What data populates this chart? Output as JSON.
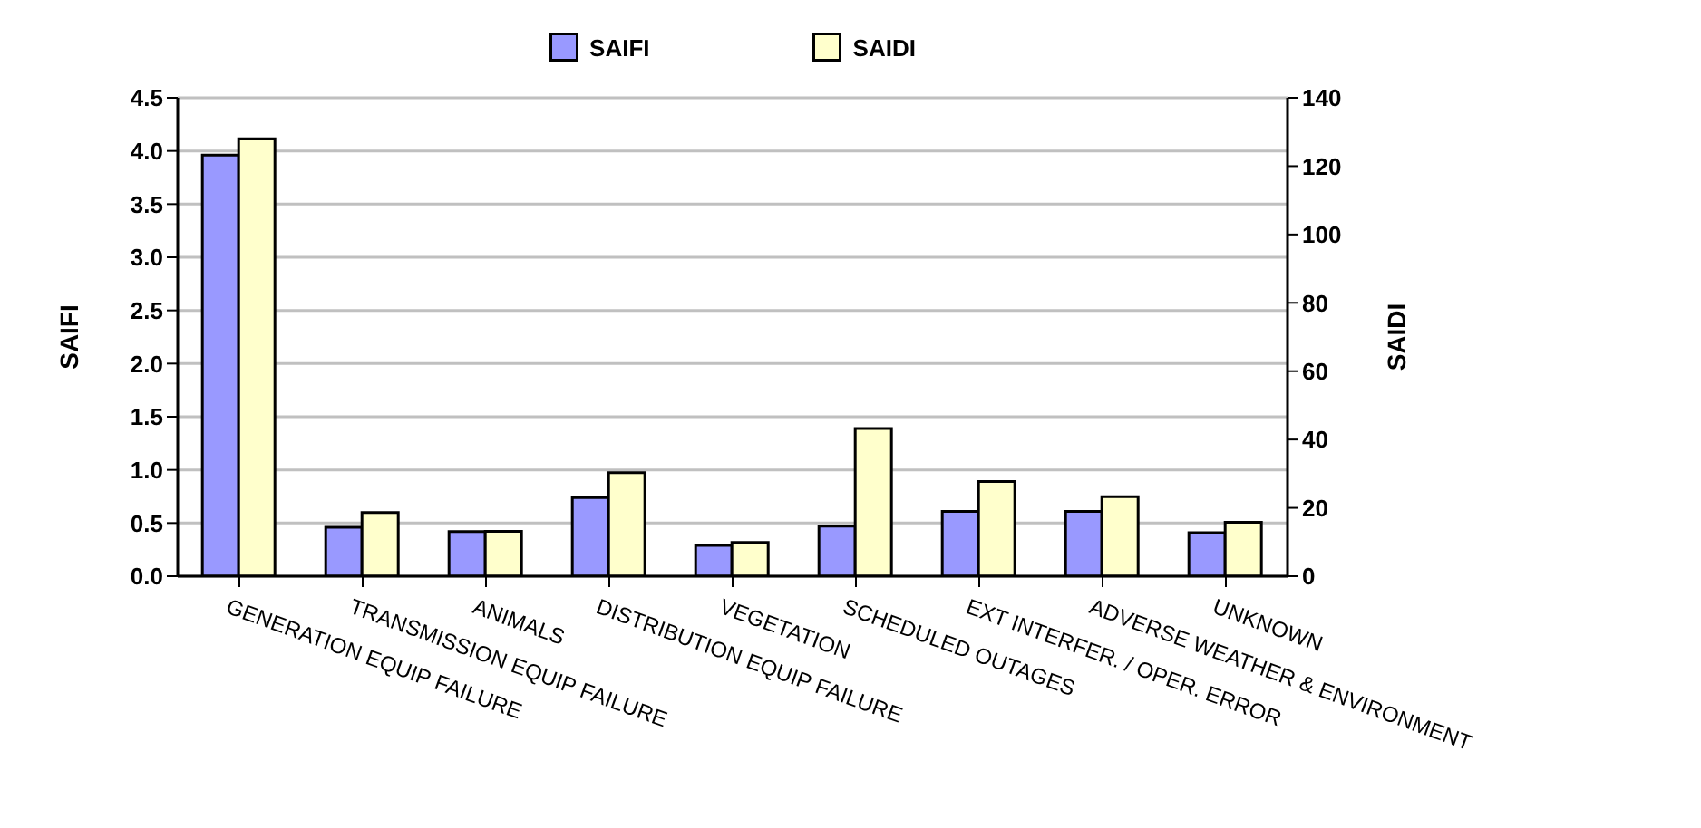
{
  "chart_data": {
    "type": "bar",
    "categories": [
      "GENERATION EQUIP FAILURE",
      "TRANSMISSION EQUIP FAILURE",
      "ANIMALS",
      "DISTRIBUTION EQUIP FAILURE",
      "VEGETATION",
      "SCHEDULED OUTAGES",
      "EXT INTERFER. / OPER. ERROR",
      "ADVERSE WEATHER & ENVIRONMENT",
      "UNKNOWN"
    ],
    "series": [
      {
        "name": "SAIFI",
        "color": "#9999ff",
        "values": [
          3.96,
          0.46,
          0.42,
          0.74,
          0.29,
          0.47,
          0.61,
          0.61,
          0.41
        ]
      },
      {
        "name": "SAIDI",
        "color": "#ffffcc",
        "axis": "y2",
        "values": [
          128,
          18.6,
          13.1,
          30.3,
          9.9,
          43.2,
          27.7,
          23.3,
          15.8
        ]
      }
    ],
    "ylabel": "SAIFI",
    "y2label": "SAIDI",
    "ylim": [
      0,
      4.5
    ],
    "yticks": [
      {
        "value": 0,
        "label": "0.0"
      },
      {
        "value": 0.5,
        "label": "0.5"
      },
      {
        "value": 1,
        "label": "1.0"
      },
      {
        "value": 1.5,
        "label": "1.5"
      },
      {
        "value": 2,
        "label": "2.0"
      },
      {
        "value": 2.5,
        "label": "2.5"
      },
      {
        "value": 3,
        "label": "3.0"
      },
      {
        "value": 3.5,
        "label": "3.5"
      },
      {
        "value": 4,
        "label": "4.0"
      },
      {
        "value": 4.5,
        "label": "4.5"
      }
    ],
    "y2lim": [
      0,
      140
    ],
    "y2ticks": [
      0,
      20,
      40,
      60,
      80,
      100,
      120,
      140
    ],
    "grid": "y",
    "legend": "top"
  }
}
